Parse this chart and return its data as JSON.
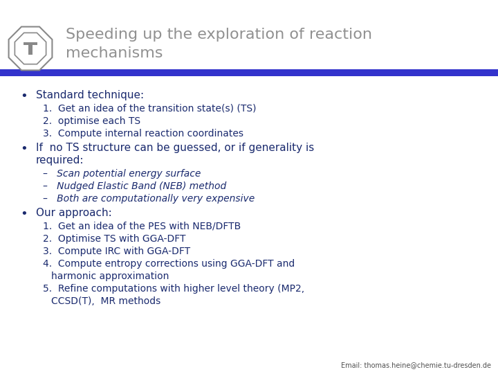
{
  "title_line1": "Speeding up the exploration of reaction",
  "title_line2": "mechanisms",
  "title_color": "#909090",
  "title_fontsize": 16,
  "header_bar_color": "#3333cc",
  "background_color": "#ffffff",
  "text_color": "#1a2a6e",
  "bullet1_header": "Standard technique:",
  "bullet1_items": [
    "1.  Get an idea of the transition state(s) (TS)",
    "2.  optimise each TS",
    "3.  Compute internal reaction coordinates"
  ],
  "bullet2_header": "If  no TS structure can be guessed, or if generality is",
  "bullet2_header2": "required:",
  "bullet2_items": [
    "–   Scan potential energy surface",
    "–   Nudged Elastic Band (NEB) method",
    "–   Both are computationally very expensive"
  ],
  "bullet3_header": "Our approach:",
  "bullet3_items": [
    "1.  Get an idea of the PES with NEB/DFTB",
    "2.  Optimise TS with GGA-DFT",
    "3.  Compute IRC with GGA-DFT",
    "4.  Compute entropy corrections using GGA-DFT and",
    "4b. harmonic approximation",
    "5.  Refine computations with higher level theory (MP2,",
    "5b. CCSD(T),  MR methods"
  ],
  "email": "Email: thomas.heine@chemie.tu-dresden.de",
  "email_color": "#505050",
  "email_fontsize": 7,
  "header_font_size": 11,
  "item_font_size": 10,
  "logo_color": "#888888"
}
